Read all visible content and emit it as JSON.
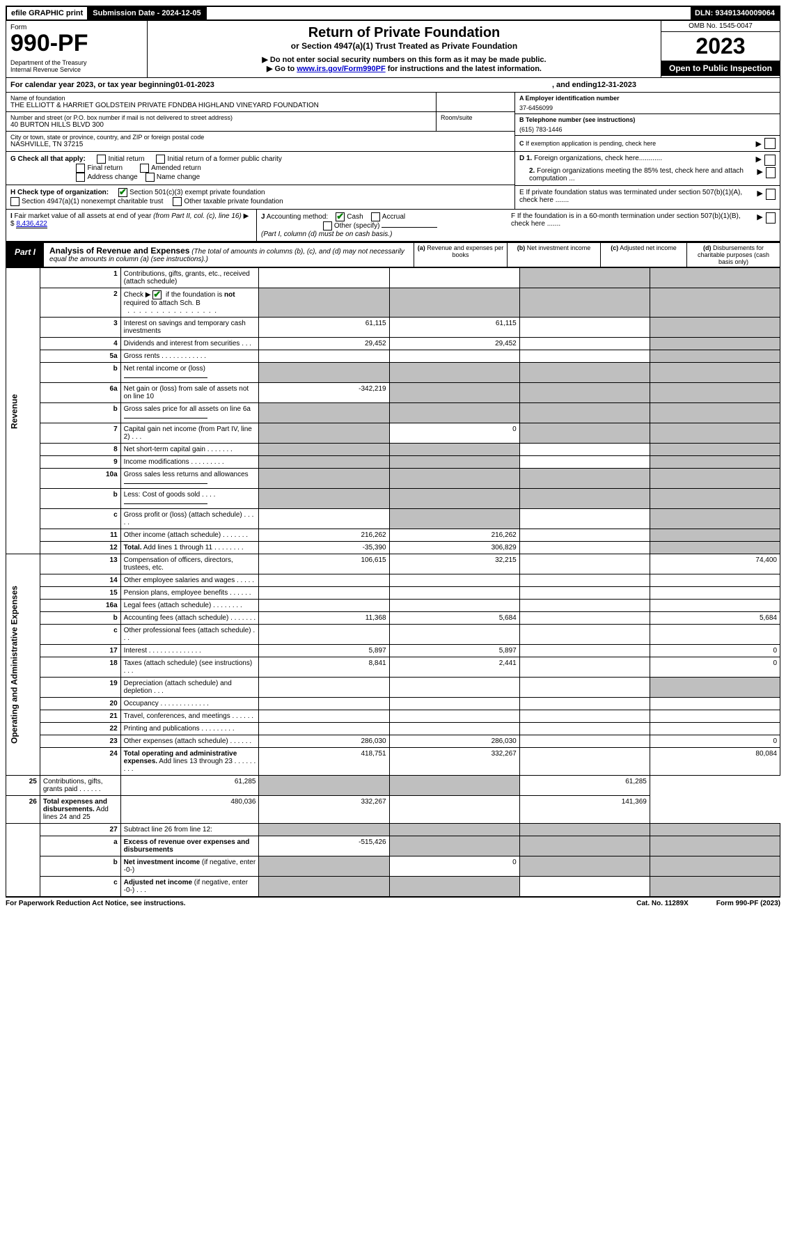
{
  "top_bar": {
    "efile": "efile GRAPHIC print",
    "submission_label": "Submission Date - 2024-12-05",
    "dln": "DLN: 93491340009064"
  },
  "header": {
    "form_label": "Form",
    "form_number": "990-PF",
    "dept": "Department of the Treasury\nInternal Revenue Service",
    "title": "Return of Private Foundation",
    "subtitle": "or Section 4947(a)(1) Trust Treated as Private Foundation",
    "instr1": "▶ Do not enter social security numbers on this form as it may be made public.",
    "instr2_pre": "▶ Go to ",
    "instr2_link": "www.irs.gov/Form990PF",
    "instr2_post": " for instructions and the latest information.",
    "omb": "OMB No. 1545-0047",
    "year": "2023",
    "inspection": "Open to Public Inspection"
  },
  "calendar": {
    "prefix": "For calendar year 2023, or tax year beginning ",
    "begin": "01-01-2023",
    "mid": ", and ending ",
    "end": "12-31-2023"
  },
  "entity": {
    "name_label": "Name of foundation",
    "name": "THE ELLIOTT & HARRIET GOLDSTEIN PRIVATE FDNDBA HIGHLAND VINEYARD FOUNDATION",
    "addr_label": "Number and street (or P.O. box number if mail is not delivered to street address)",
    "addr": "40 BURTON HILLS BLVD 300",
    "room_label": "Room/suite",
    "city_label": "City or town, state or province, country, and ZIP or foreign postal code",
    "city": "NASHVILLE, TN  37215",
    "ein_label": "A Employer identification number",
    "ein": "37-6456099",
    "phone_label": "B Telephone number (see instructions)",
    "phone": "(615) 783-1446",
    "c_label": "C If exemption application is pending, check here"
  },
  "checks": {
    "g_label": "G Check all that apply:",
    "g_initial": "Initial return",
    "g_initial_former": "Initial return of a former public charity",
    "g_final": "Final return",
    "g_amended": "Amended return",
    "g_address": "Address change",
    "g_name": "Name change",
    "h_label": "H Check type of organization:",
    "h_501c3": "Section 501(c)(3) exempt private foundation",
    "h_4947": "Section 4947(a)(1) nonexempt charitable trust",
    "h_other": "Other taxable private foundation",
    "i_label": "I Fair market value of all assets at end of year (from Part II, col. (c), line 16)",
    "i_value": "8,436,422",
    "j_label": "J Accounting method:",
    "j_cash": "Cash",
    "j_accrual": "Accrual",
    "j_other": "Other (specify)",
    "j_note": "(Part I, column (d) must be on cash basis.)",
    "d1": "D 1. Foreign organizations, check here............",
    "d2": "2. Foreign organizations meeting the 85% test, check here and attach computation ...",
    "e": "E  If private foundation status was terminated under section 507(b)(1)(A), check here .......",
    "f": "F  If the foundation is in a 60-month termination under section 507(b)(1)(B), check here ......."
  },
  "part1": {
    "tab": "Part I",
    "title": "Analysis of Revenue and Expenses",
    "title_note": " (The total of amounts in columns (b), (c), and (d) may not necessarily equal the amounts in column (a) (see instructions).)",
    "col_a": "(a) Revenue and expenses per books",
    "col_b": "(b) Net investment income",
    "col_c": "(c) Adjusted net income",
    "col_d": "(d) Disbursements for charitable purposes (cash basis only)",
    "revenue_label": "Revenue",
    "expenses_label": "Operating and Administrative Expenses"
  },
  "rows": [
    {
      "n": "1",
      "desc": "Contributions, gifts, grants, etc., received (attach schedule)",
      "a": "",
      "b": "",
      "c": "grey",
      "d": "grey"
    },
    {
      "n": "2",
      "desc": "Check ▶ ☑ if the foundation is <b>not</b> required to attach Sch. B   . . . . . . . . . . . . . . . . .",
      "a": "grey",
      "b": "grey",
      "c": "grey",
      "d": "grey",
      "checked": true
    },
    {
      "n": "3",
      "desc": "Interest on savings and temporary cash investments",
      "a": "61,115",
      "b": "61,115",
      "c": "",
      "d": "grey"
    },
    {
      "n": "4",
      "desc": "Dividends and interest from securities    .   .   .",
      "a": "29,452",
      "b": "29,452",
      "c": "",
      "d": "grey"
    },
    {
      "n": "5a",
      "desc": "Gross rents    .   .   .   .   .   .   .   .   .   .   .   .",
      "a": "",
      "b": "",
      "c": "",
      "d": "grey"
    },
    {
      "n": "b",
      "desc": "Net rental income or (loss)  ",
      "a": "grey",
      "b": "grey",
      "c": "grey",
      "d": "grey",
      "inline_input": true
    },
    {
      "n": "6a",
      "desc": "Net gain or (loss) from sale of assets not on line 10",
      "a": "-342,219",
      "b": "grey",
      "c": "grey",
      "d": "grey"
    },
    {
      "n": "b",
      "desc": "Gross sales price for all assets on line 6a",
      "a": "grey",
      "b": "grey",
      "c": "grey",
      "d": "grey",
      "inline_input": true
    },
    {
      "n": "7",
      "desc": "Capital gain net income (from Part IV, line 2)    .   .   .",
      "a": "grey",
      "b": "0",
      "c": "grey",
      "d": "grey"
    },
    {
      "n": "8",
      "desc": "Net short-term capital gain   .   .   .   .   .   .   .",
      "a": "grey",
      "b": "grey",
      "c": "",
      "d": "grey"
    },
    {
      "n": "9",
      "desc": "Income modifications  .   .   .   .   .   .   .   .   .",
      "a": "grey",
      "b": "grey",
      "c": "",
      "d": "grey"
    },
    {
      "n": "10a",
      "desc": "Gross sales less returns and allowances",
      "a": "grey",
      "b": "grey",
      "c": "grey",
      "d": "grey",
      "inline_input": true
    },
    {
      "n": "b",
      "desc": "Less: Cost of goods sold     .   .   .   .",
      "a": "grey",
      "b": "grey",
      "c": "grey",
      "d": "grey",
      "inline_input": true
    },
    {
      "n": "c",
      "desc": "Gross profit or (loss) (attach schedule)     .   .   .   .   .",
      "a": "",
      "b": "grey",
      "c": "",
      "d": "grey"
    },
    {
      "n": "11",
      "desc": "Other income (attach schedule)    .   .   .   .   .   .   .",
      "a": "216,262",
      "b": "216,262",
      "c": "",
      "d": "grey"
    },
    {
      "n": "12",
      "desc": "<b>Total.</b> Add lines 1 through 11   .   .   .   .   .   .   .   .",
      "a": "-35,390",
      "b": "306,829",
      "c": "",
      "d": "grey"
    },
    {
      "n": "13",
      "desc": "Compensation of officers, directors, trustees, etc.",
      "a": "106,615",
      "b": "32,215",
      "c": "",
      "d": "74,400",
      "section": "exp"
    },
    {
      "n": "14",
      "desc": "Other employee salaries and wages     .   .   .   .   .",
      "a": "",
      "b": "",
      "c": "",
      "d": ""
    },
    {
      "n": "15",
      "desc": "Pension plans, employee benefits  .   .   .   .   .   .",
      "a": "",
      "b": "",
      "c": "",
      "d": ""
    },
    {
      "n": "16a",
      "desc": "Legal fees (attach schedule) .   .   .   .   .   .   .   .",
      "a": "",
      "b": "",
      "c": "",
      "d": ""
    },
    {
      "n": "b",
      "desc": "Accounting fees (attach schedule) .   .   .   .   .   .   .",
      "a": "11,368",
      "b": "5,684",
      "c": "",
      "d": "5,684"
    },
    {
      "n": "c",
      "desc": "Other professional fees (attach schedule)     .   .   .",
      "a": "",
      "b": "",
      "c": "",
      "d": ""
    },
    {
      "n": "17",
      "desc": "Interest  .   .   .   .   .   .   .   .   .   .   .   .   .   .",
      "a": "5,897",
      "b": "5,897",
      "c": "",
      "d": "0"
    },
    {
      "n": "18",
      "desc": "Taxes (attach schedule) (see instructions)     .   .   .",
      "a": "8,841",
      "b": "2,441",
      "c": "",
      "d": "0"
    },
    {
      "n": "19",
      "desc": "Depreciation (attach schedule) and depletion    .   .   .",
      "a": "",
      "b": "",
      "c": "",
      "d": "grey"
    },
    {
      "n": "20",
      "desc": "Occupancy .   .   .   .   .   .   .   .   .   .   .   .   .",
      "a": "",
      "b": "",
      "c": "",
      "d": ""
    },
    {
      "n": "21",
      "desc": "Travel, conferences, and meetings .   .   .   .   .   .",
      "a": "",
      "b": "",
      "c": "",
      "d": ""
    },
    {
      "n": "22",
      "desc": "Printing and publications .   .   .   .   .   .   .   .   .",
      "a": "",
      "b": "",
      "c": "",
      "d": ""
    },
    {
      "n": "23",
      "desc": "Other expenses (attach schedule)  .   .   .   .   .   .",
      "a": "286,030",
      "b": "286,030",
      "c": "",
      "d": "0"
    },
    {
      "n": "24",
      "desc": "<b>Total operating and administrative expenses.</b> Add lines 13 through 23   .   .   .   .   .   .   .   .   .",
      "a": "418,751",
      "b": "332,267",
      "c": "",
      "d": "80,084"
    },
    {
      "n": "25",
      "desc": "Contributions, gifts, grants paid     .   .   .   .   .   .",
      "a": "61,285",
      "b": "grey",
      "c": "grey",
      "d": "61,285"
    },
    {
      "n": "26",
      "desc": "<b>Total expenses and disbursements.</b> Add lines 24 and 25",
      "a": "480,036",
      "b": "332,267",
      "c": "",
      "d": "141,369"
    },
    {
      "n": "27",
      "desc": "Subtract line 26 from line 12:",
      "a": "grey",
      "b": "grey",
      "c": "grey",
      "d": "grey",
      "section": "bottom"
    },
    {
      "n": "a",
      "desc": "<b>Excess of revenue over expenses and disbursements</b>",
      "a": "-515,426",
      "b": "grey",
      "c": "grey",
      "d": "grey"
    },
    {
      "n": "b",
      "desc": "<b>Net investment income</b> (if negative, enter -0-)",
      "a": "grey",
      "b": "0",
      "c": "grey",
      "d": "grey"
    },
    {
      "n": "c",
      "desc": "<b>Adjusted net income</b> (if negative, enter -0-)    .   .   .",
      "a": "grey",
      "b": "grey",
      "c": "",
      "d": "grey"
    }
  ],
  "footer": {
    "left": "For Paperwork Reduction Act Notice, see instructions.",
    "mid": "Cat. No. 11289X",
    "right": "Form 990-PF (2023)"
  }
}
